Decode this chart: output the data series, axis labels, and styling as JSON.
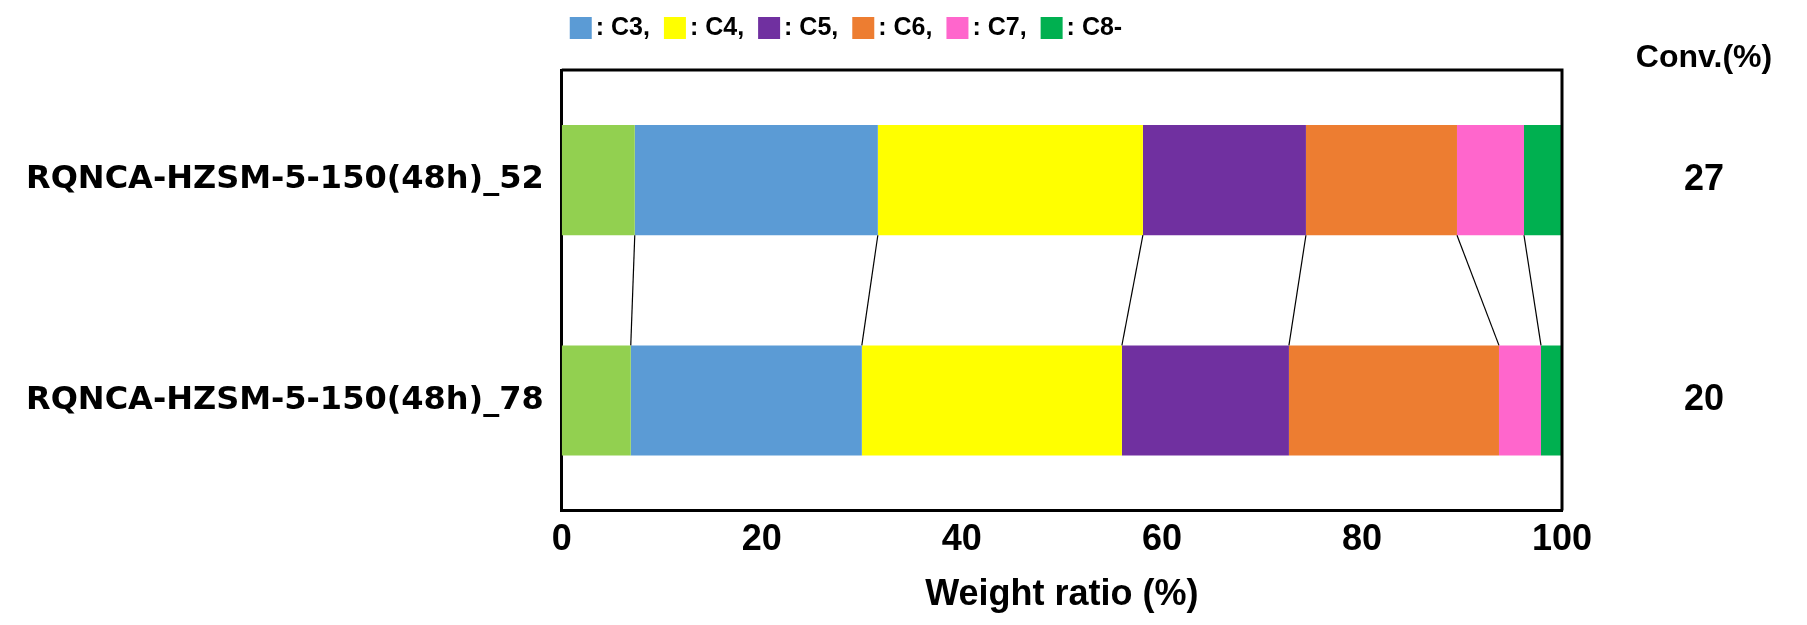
{
  "chart_data": {
    "type": "bar",
    "orientation": "horizontal",
    "stacked": true,
    "xlabel": "Weight ratio (%)",
    "categories": [
      "RQNCA-HZSM-5-150(48h)_52",
      "RQNCA-HZSM-5-150(48h)_78"
    ],
    "series": [
      {
        "color": "#92d050",
        "values": [
          7.3,
          6.9
        ]
      },
      {
        "name": ": C3,",
        "color": "#5b9bd5",
        "values": [
          24.3,
          23.1
        ]
      },
      {
        "name": ": C4,",
        "color": "#ffff00",
        "values": [
          26.5,
          26.0
        ]
      },
      {
        "name": ": C5,",
        "color": "#7030a0",
        "values": [
          16.3,
          16.7
        ]
      },
      {
        "name": ": C6,",
        "color": "#ed7d31",
        "values": [
          15.1,
          21.0
        ]
      },
      {
        "name": ": C7,",
        "color": "#ff66cc",
        "values": [
          6.7,
          4.2
        ]
      },
      {
        "name": ": C8-",
        "color": "#00b050",
        "values": [
          3.8,
          2.1
        ]
      }
    ],
    "xlim": [
      0,
      100
    ],
    "xticks": [
      0,
      20,
      40,
      60,
      80,
      100
    ],
    "grid": false,
    "legend": "top",
    "annotations": [
      "Conv.(%)",
      "27",
      "20"
    ]
  }
}
